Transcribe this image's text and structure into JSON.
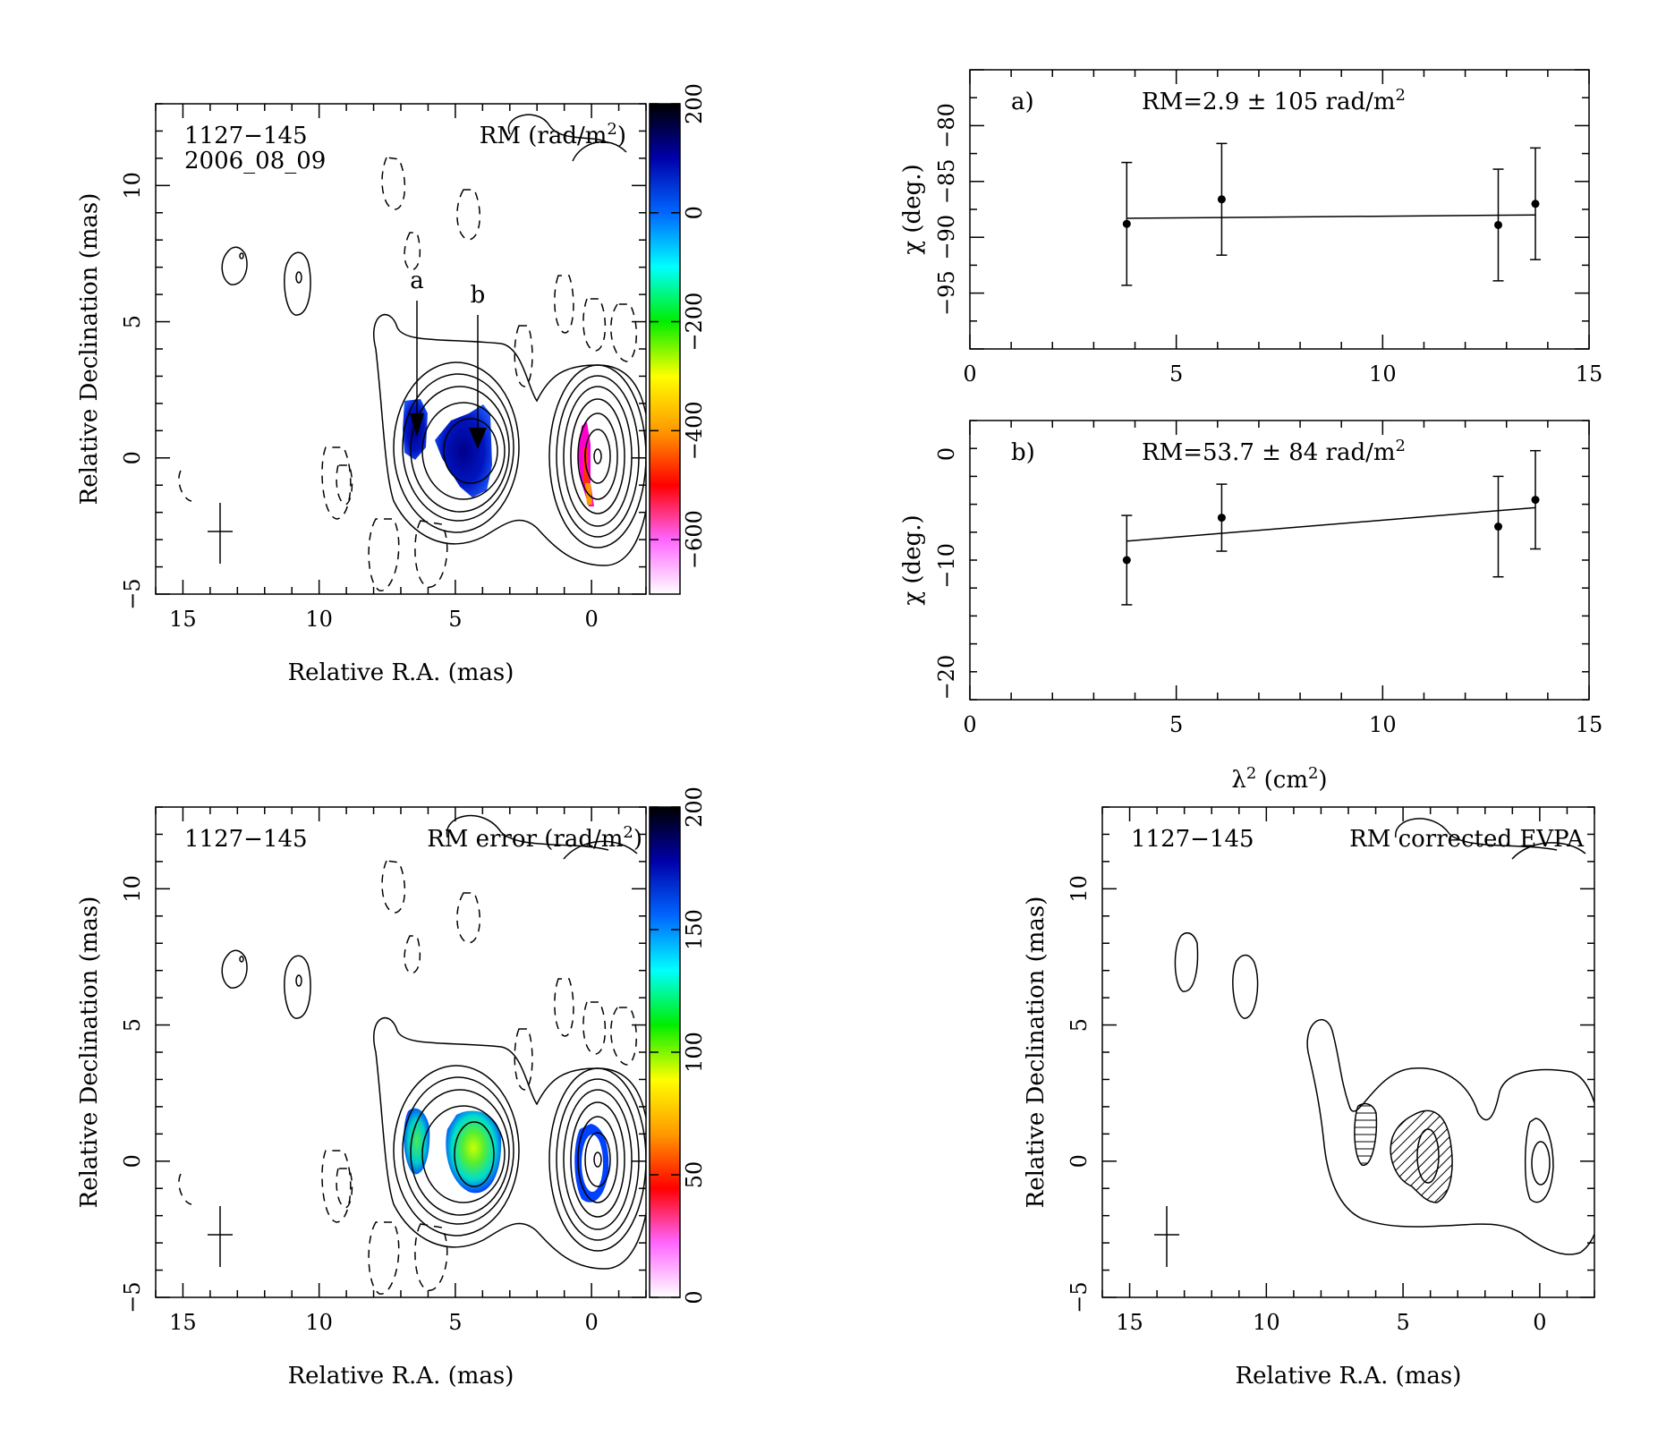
{
  "panels": {
    "rm_map": {
      "source": "1127−145",
      "epoch": "2006_08_09",
      "quantity": "RM (rad/m",
      "quantity_sup": "2",
      "quantity_close": ")",
      "marker_a": "a",
      "marker_b": "b",
      "colorbar_ticks": [
        "200",
        "0",
        "−200",
        "−400",
        "−600"
      ],
      "colorbar_range": [
        -700,
        200
      ],
      "colorbar_colors": [
        "#ffffff",
        "#ff66ff",
        "#ff0000",
        "#ff9900",
        "#ffff00",
        "#00ee00",
        "#00ffff",
        "#0066ff",
        "#0000aa",
        "#000000"
      ]
    },
    "rm_error_map": {
      "source": "1127−145",
      "quantity": "RM error (rad/m",
      "quantity_sup": "2",
      "quantity_close": ")",
      "colorbar_ticks": [
        "200",
        "150",
        "100",
        "50",
        "0"
      ],
      "colorbar_range": [
        0,
        200
      ],
      "colorbar_colors": [
        "#ffffff",
        "#ff66ff",
        "#ff0000",
        "#ff9900",
        "#ffff00",
        "#00ee00",
        "#00ffff",
        "#0066ff",
        "#0000aa",
        "#000000"
      ]
    },
    "evpa_map": {
      "source": "1127−145",
      "quantity": "RM corrected EVPA"
    }
  },
  "map_axes": {
    "xlabel": "Relative R.A. (mas)",
    "ylabel": "Relative Declination (mas)",
    "xticks": [
      "15",
      "10",
      "5",
      "0"
    ],
    "yticks": [
      "−5",
      "0",
      "5",
      "10"
    ],
    "xrange": [
      16,
      -2
    ],
    "yrange": [
      -5,
      13
    ]
  },
  "chart_data": [
    {
      "type": "scatter",
      "panel_label": "a)",
      "rm_text": "RM=2.9 ± 105 rad/m",
      "rm_sup": "2",
      "ylabel": "χ (deg.)",
      "xlim": [
        0,
        15
      ],
      "ylim": [
        -100,
        -75
      ],
      "xticks": [
        "0",
        "5",
        "10",
        "15"
      ],
      "yticks": [
        "−95",
        "−90",
        "−85",
        "−80"
      ],
      "x": [
        3.8,
        6.1,
        12.8,
        13.7
      ],
      "y": [
        -88.8,
        -86.6,
        -88.9,
        -87.0
      ],
      "yerr": [
        5.5,
        5.0,
        5.0,
        5.0
      ],
      "fit": {
        "x": [
          3.8,
          13.7
        ],
        "y": [
          -88.3,
          -88.0
        ]
      }
    },
    {
      "type": "scatter",
      "panel_label": "b)",
      "rm_text": "RM=53.7 ± 84 rad/m",
      "rm_sup": "2",
      "ylabel": "χ (deg.)",
      "xlabel": "λ",
      "xlabel_sup": "2",
      "xlabel_close": " (cm",
      "xlabel_sup2": "2",
      "xlabel_end": ")",
      "xlim": [
        0,
        15
      ],
      "ylim": [
        -22,
        3
      ],
      "xticks": [
        "0",
        "5",
        "10",
        "15"
      ],
      "yticks": [
        "−20",
        "−10",
        "0"
      ],
      "x": [
        3.8,
        6.1,
        12.8,
        13.7
      ],
      "y": [
        -9.5,
        -5.7,
        -6.5,
        -4.1
      ],
      "yerr": [
        4.0,
        3.0,
        4.5,
        4.4
      ],
      "fit": {
        "x": [
          3.8,
          13.7
        ],
        "y": [
          -7.8,
          -4.8
        ]
      }
    }
  ]
}
